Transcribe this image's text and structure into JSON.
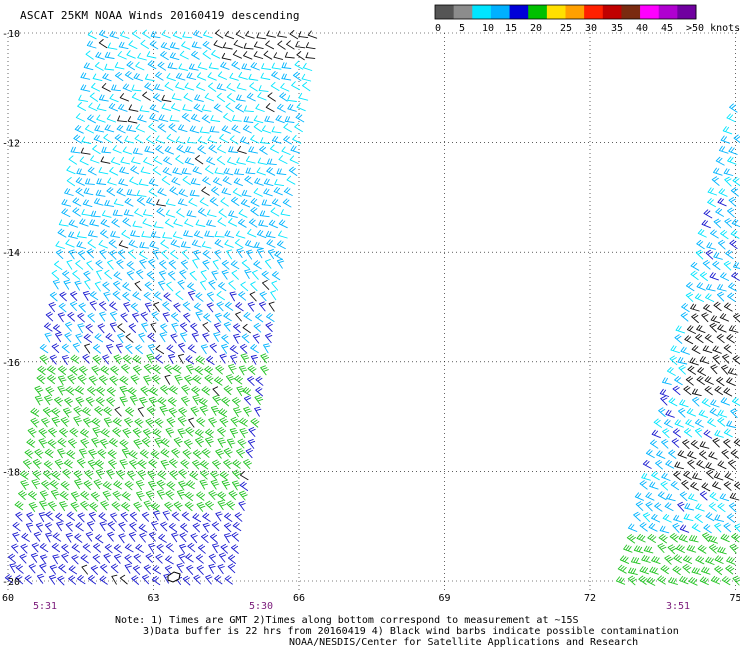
{
  "title": "ASCAT 25KM NOAA Winds 20160419 descending",
  "scale": {
    "labels": [
      "0",
      "5",
      "10",
      "15",
      "20",
      "25",
      "30",
      "35",
      "40",
      "45",
      ">50 knots"
    ],
    "colors": [
      "#555555",
      "#8c8c8c",
      "#00e5ff",
      "#00b0ff",
      "#0000d8",
      "#00c000",
      "#ffe000",
      "#ffa000",
      "#ff2000",
      "#c00000",
      "#7a2a10",
      "#ff00ff",
      "#b000d0",
      "#7000a0"
    ]
  },
  "map": {
    "lon_ticks": [
      "60",
      "63",
      "66",
      "69",
      "72",
      "75"
    ],
    "lat_ticks": [
      "-10",
      "-12",
      "-14",
      "-16",
      "-18",
      "-20"
    ],
    "times": [
      "5:31",
      "5:30",
      "3:51"
    ]
  },
  "notes": [
    "Note: 1) Times are GMT 2)Times along bottom correspond to measurement at ~15S",
    "3)Data buffer is 22 hrs from 20160419 4) Black wind barbs indicate possible contamination",
    "NOAA/NESDIS/Center for Satellite Applications and Research"
  ]
}
